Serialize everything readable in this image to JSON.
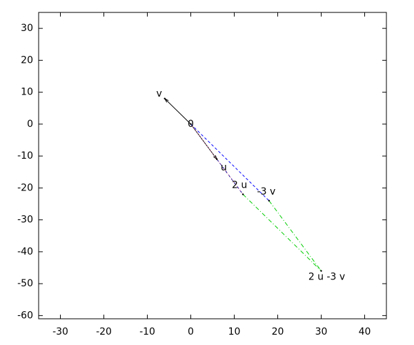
{
  "chart_data": {
    "type": "vector",
    "points": [
      {
        "label": "0",
        "x": 0,
        "y": 0
      },
      {
        "label": "u",
        "x": 6,
        "y": -11
      },
      {
        "label": "v",
        "x": -6,
        "y": 8
      },
      {
        "label": "2 u",
        "x": 12,
        "y": -22
      },
      {
        "label": "-3 v",
        "x": 18,
        "y": -24
      },
      {
        "label": "2 u -3 v",
        "x": 30,
        "y": -46
      }
    ],
    "xlim": [
      -35,
      45
    ],
    "ylim": [
      -61,
      35
    ],
    "xticks": [
      -30,
      -20,
      -10,
      0,
      10,
      20,
      30,
      40
    ],
    "yticks": [
      -60,
      -50,
      -40,
      -30,
      -20,
      -10,
      0,
      10,
      20,
      30
    ]
  }
}
